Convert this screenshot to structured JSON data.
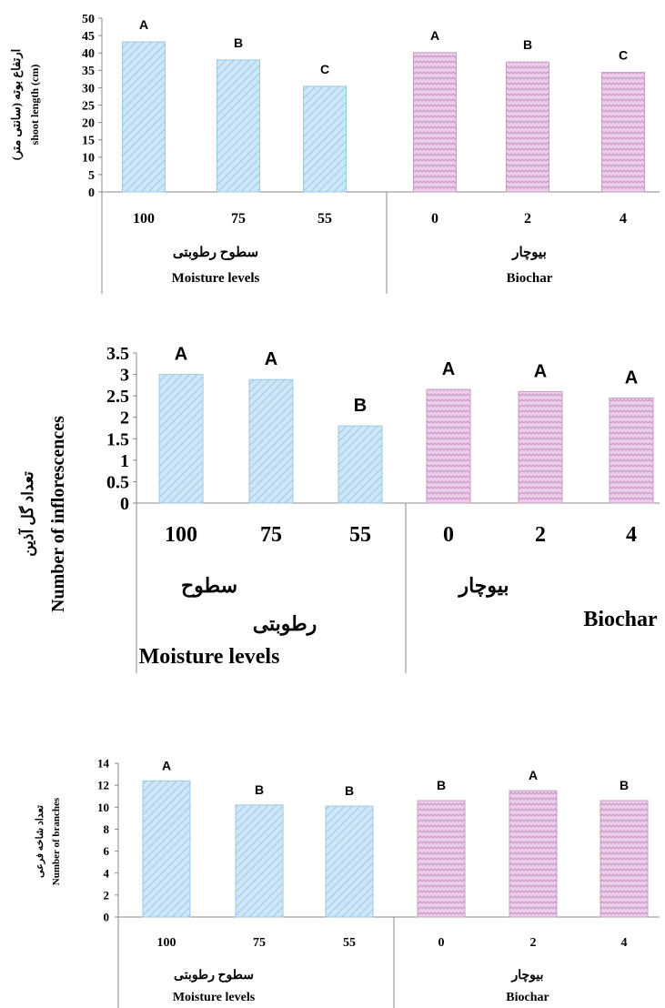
{
  "colors": {
    "moisture_fill": "#cfe6f7",
    "moisture_stroke": "#9cc9e6",
    "biochar_fill": "#eccdea",
    "biochar_stroke": "#c99ac4"
  },
  "chart_data": [
    {
      "type": "bar",
      "categories": [
        "100",
        "75",
        "55",
        "0",
        "2",
        "4"
      ],
      "values": [
        43.2,
        38.0,
        30.4,
        40.1,
        37.4,
        34.4
      ],
      "letters": [
        "A",
        "B",
        "C",
        "A",
        "B",
        "C"
      ],
      "groups": [
        {
          "label_fa": "سطوح رطوبتی",
          "label_en": "Moisture levels"
        },
        {
          "label_fa": "بیوچار",
          "label_en": "Biochar"
        }
      ],
      "ylabel_fa": "ارتفاع بوته (سانتی متر)",
      "ylabel_en": "shoot length (cm)",
      "ylim": [
        0,
        50
      ],
      "yticks": [
        "0",
        "5",
        "10",
        "15",
        "20",
        "25",
        "30",
        "35",
        "40",
        "45",
        "50"
      ],
      "grid": false
    },
    {
      "type": "bar",
      "categories": [
        "100",
        "75",
        "55",
        "0",
        "2",
        "4"
      ],
      "values": [
        3.0,
        2.88,
        1.8,
        2.65,
        2.6,
        2.45
      ],
      "letters": [
        "A",
        "A",
        "B",
        "A",
        "A",
        "A"
      ],
      "groups": [
        {
          "label_fa": "سطوح",
          "label_fa2": "رطوبتی",
          "label_en": "Moisture levels"
        },
        {
          "label_fa": "بیوچار",
          "label_en": "Biochar"
        }
      ],
      "ylabel_fa": "تعداد گل آذین",
      "ylabel_en": "Number of inflorescences",
      "ylim": [
        0,
        3.5
      ],
      "yticks": [
        "0",
        "0.5",
        "1",
        "1.5",
        "2",
        "2.5",
        "3",
        "3.5"
      ],
      "grid": false
    },
    {
      "type": "bar",
      "categories": [
        "100",
        "75",
        "55",
        "0",
        "2",
        "4"
      ],
      "values": [
        12.4,
        10.2,
        10.1,
        10.6,
        11.5,
        10.6
      ],
      "letters": [
        "A",
        "B",
        "B",
        "B",
        "A",
        "B"
      ],
      "groups": [
        {
          "label_fa": "سطوح رطوبتی",
          "label_en": "Moisture levels"
        },
        {
          "label_fa": "بیوچار",
          "label_en": "Biochar"
        }
      ],
      "ylabel_fa": "تعداد شاخه فرعی",
      "ylabel_en": "Number of branches",
      "ylim": [
        0,
        14
      ],
      "yticks": [
        "0",
        "2",
        "4",
        "6",
        "8",
        "10",
        "12",
        "14"
      ],
      "grid": false
    }
  ]
}
